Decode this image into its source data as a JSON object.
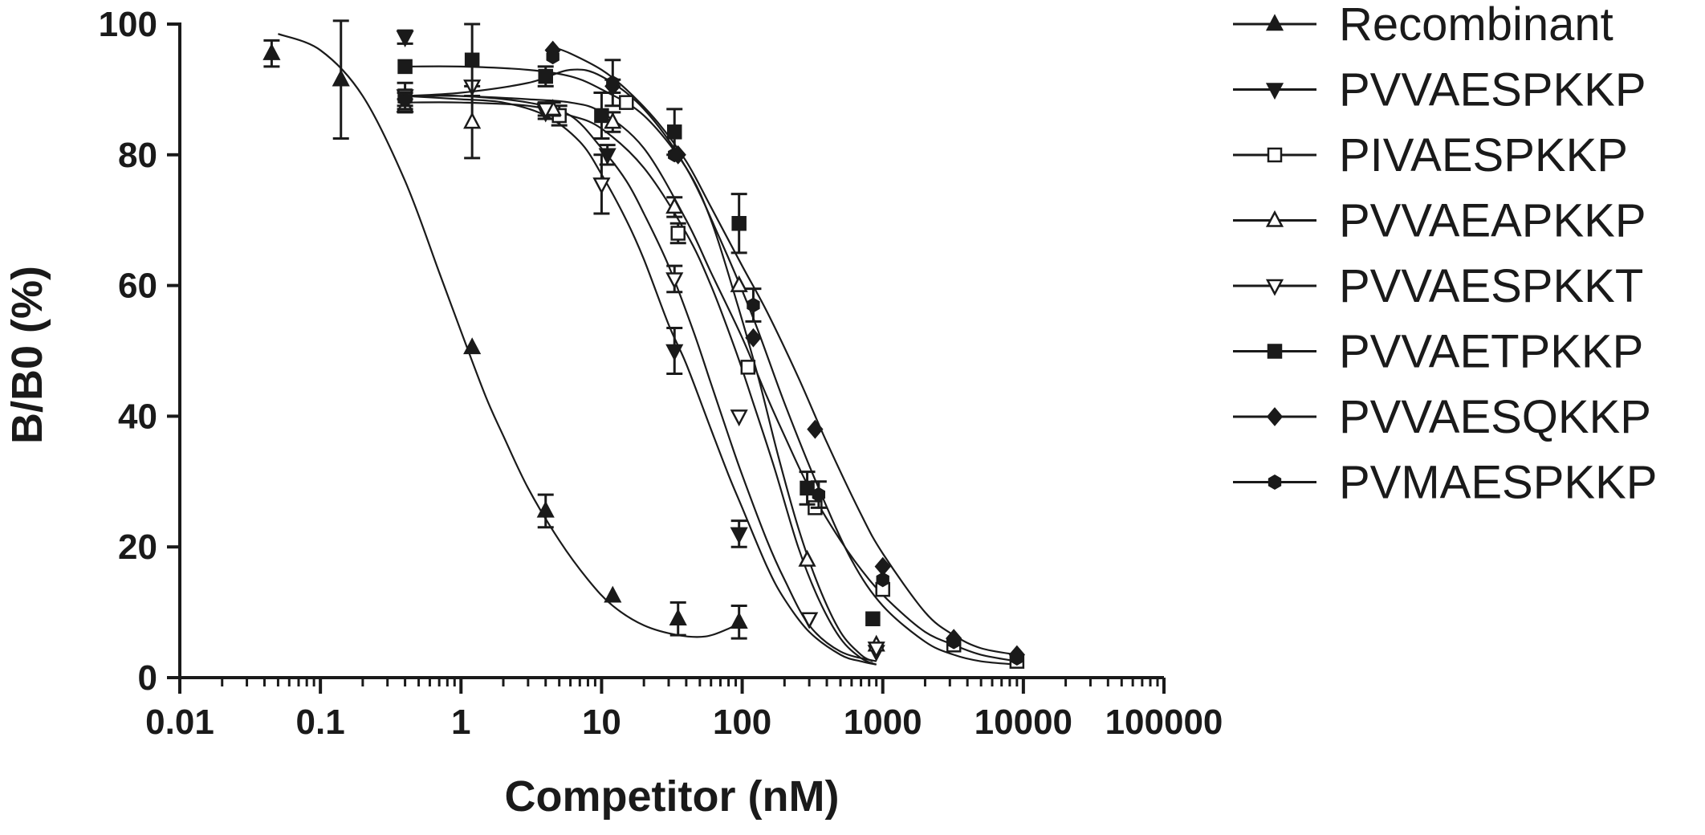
{
  "chart_data": {
    "type": "scatter",
    "xscale": "log",
    "xlim": [
      0.01,
      100000
    ],
    "ylim": [
      0,
      100
    ],
    "xticks": [
      0.01,
      0.1,
      1,
      10,
      100,
      1000,
      10000,
      100000
    ],
    "xtick_labels": [
      "0.01",
      "0.1",
      "1",
      "10",
      "100",
      "1000",
      "10000",
      "100000"
    ],
    "yticks": [
      0,
      20,
      40,
      60,
      80,
      100
    ],
    "ytick_labels": [
      "0",
      "20",
      "40",
      "60",
      "80",
      "100"
    ],
    "xlabel": "Competitor (nM)",
    "ylabel": "B/B0 (%)",
    "grid": false,
    "legend_position": "right",
    "series": [
      {
        "name": "Recombinant",
        "marker": "triangle-up-filled",
        "color": "#1a1a1a",
        "x": [
          0.045,
          0.14,
          1.2,
          4.0,
          12,
          35,
          95
        ],
        "y": [
          95.5,
          91.5,
          50.5,
          25.5,
          12.5,
          9,
          8.5
        ],
        "err": [
          2,
          9,
          0,
          2.5,
          0,
          2.5,
          2.5
        ],
        "curve_x": [
          0.05,
          0.1,
          0.2,
          0.4,
          0.7,
          1,
          1.5,
          2,
          3,
          5,
          8,
          12,
          20,
          35,
          55,
          80,
          95
        ],
        "curve_y": [
          98.5,
          96,
          89,
          76,
          62,
          53,
          43,
          37,
          29,
          21,
          15,
          11,
          8,
          6.5,
          6.3,
          7.5,
          8.5
        ]
      },
      {
        "name": "PVVAESPKKP",
        "marker": "triangle-down-filled",
        "color": "#1a1a1a",
        "x": [
          0.4,
          4,
          11,
          33,
          95,
          300,
          900
        ],
        "y": [
          98,
          86.5,
          80,
          50,
          22,
          9,
          4
        ],
        "err": [
          1,
          1,
          1.5,
          3.5,
          2,
          0,
          0
        ],
        "curve_x": [
          0.4,
          1,
          2,
          4,
          7,
          10,
          15,
          20,
          30,
          40,
          60,
          80,
          100,
          150,
          200,
          300,
          500,
          700,
          900
        ],
        "curve_y": [
          89,
          88.5,
          88,
          86,
          82,
          77,
          70,
          64,
          54,
          48,
          38,
          31,
          26,
          17,
          12,
          7,
          3.5,
          2.5,
          2
        ]
      },
      {
        "name": "PIVAESPKKP",
        "marker": "square-open",
        "color": "#1a1a1a",
        "x": [
          0.4,
          5,
          15,
          35,
          110,
          330,
          1000,
          3200,
          9000
        ],
        "y": [
          89,
          86,
          88,
          68,
          47.5,
          26,
          13.5,
          5,
          2.5
        ],
        "err": [
          0,
          1.5,
          0,
          1.5,
          0,
          0,
          0,
          0,
          0
        ],
        "curve_x": [
          0.4,
          1,
          3,
          6,
          10,
          20,
          40,
          60,
          100,
          150,
          200,
          300,
          500,
          800,
          1200,
          2000,
          3200,
          5000,
          9000
        ],
        "curve_y": [
          89,
          89,
          88.5,
          88,
          86.5,
          81,
          70,
          62,
          52,
          43,
          37,
          29,
          21,
          15,
          11,
          7,
          5,
          3.5,
          2.5
        ]
      },
      {
        "name": "PVVAEAPKKP",
        "marker": "triangle-up-open",
        "color": "#1a1a1a",
        "x": [
          0.4,
          1.2,
          4.5,
          12,
          33,
          95,
          290,
          900
        ],
        "y": [
          87.5,
          85,
          87,
          85,
          72,
          60,
          18,
          5
        ],
        "err": [
          1,
          5.5,
          1,
          1.5,
          1.5,
          0,
          0,
          0
        ],
        "curve_x": [
          0.4,
          1,
          3,
          6,
          10,
          20,
          40,
          60,
          90,
          120,
          170,
          250,
          350,
          500,
          700,
          900
        ],
        "curve_y": [
          88,
          88,
          87.5,
          86,
          84,
          78,
          68,
          60,
          50,
          42,
          32,
          20,
          12,
          6,
          3,
          2
        ]
      },
      {
        "name": "PVVAESPKKT",
        "marker": "triangle-down-open",
        "color": "#1a1a1a",
        "x": [
          0.4,
          1.2,
          4,
          10,
          33,
          95,
          300,
          900
        ],
        "y": [
          89,
          90.5,
          87,
          75.5,
          61,
          40,
          9,
          4.5
        ],
        "err": [
          2,
          0,
          1,
          4.5,
          2,
          0,
          0,
          0
        ],
        "curve_x": [
          0.4,
          1,
          3,
          6,
          10,
          15,
          20,
          30,
          45,
          60,
          80,
          100,
          150,
          200,
          300,
          500,
          900
        ],
        "curve_y": [
          89,
          89,
          88,
          86,
          81,
          76,
          71,
          63,
          53,
          45,
          37,
          31,
          21,
          15,
          8,
          4,
          2.5
        ]
      },
      {
        "name": "PVVAETPKKP",
        "marker": "square-filled",
        "color": "#1a1a1a",
        "x": [
          0.4,
          1.2,
          4,
          10,
          33,
          95,
          290,
          850
        ],
        "y": [
          93.5,
          94.5,
          92,
          86,
          83.5,
          69.5,
          29,
          9
        ],
        "err": [
          0,
          5.5,
          1.5,
          3.5,
          3.5,
          4.5,
          2.5,
          0
        ],
        "curve_x": [
          0.4,
          1,
          3,
          6,
          10,
          20,
          40,
          60,
          90,
          130,
          180,
          250,
          350,
          500,
          700,
          850
        ],
        "curve_y": [
          93.5,
          93.5,
          93,
          92,
          90,
          86,
          78,
          70,
          58,
          46,
          34,
          23,
          14,
          7,
          3.5,
          2.5
        ]
      },
      {
        "name": "PVVAESQKKP",
        "marker": "diamond-filled",
        "color": "#1a1a1a",
        "x": [
          4.5,
          12,
          35,
          120,
          330,
          1000,
          3200,
          9000
        ],
        "y": [
          96,
          90.5,
          80,
          52,
          38,
          17,
          6,
          3.5
        ],
        "err": [
          0,
          1,
          0,
          0,
          0,
          0,
          0,
          0
        ],
        "curve_x": [
          4.5,
          6,
          10,
          15,
          25,
          40,
          60,
          100,
          150,
          250,
          400,
          700,
          1000,
          2000,
          3200,
          5000,
          9000
        ],
        "curve_y": [
          96.5,
          95.5,
          93,
          90,
          85,
          79,
          72,
          63,
          56,
          46,
          36,
          25,
          19,
          10,
          6.5,
          4.5,
          3.5
        ]
      },
      {
        "name": "PVMAESPKKP",
        "marker": "hexagon-filled",
        "color": "#1a1a1a",
        "x": [
          0.4,
          4.5,
          12,
          33,
          120,
          350,
          1000,
          3200,
          9000
        ],
        "y": [
          88.5,
          95,
          91,
          80,
          57,
          28,
          15,
          5.5,
          3
        ],
        "err": [
          1,
          0,
          3.5,
          0,
          2.5,
          2,
          0,
          0,
          0
        ],
        "curve_x": [
          0.4,
          1,
          3,
          6,
          10,
          20,
          40,
          70,
          120,
          200,
          350,
          600,
          1000,
          2000,
          3200,
          5000,
          9000
        ],
        "curve_y": [
          89,
          89.5,
          91,
          93,
          92,
          87,
          78,
          67,
          55,
          42,
          29,
          18,
          11,
          5.5,
          3.5,
          2.5,
          2
        ]
      }
    ]
  }
}
